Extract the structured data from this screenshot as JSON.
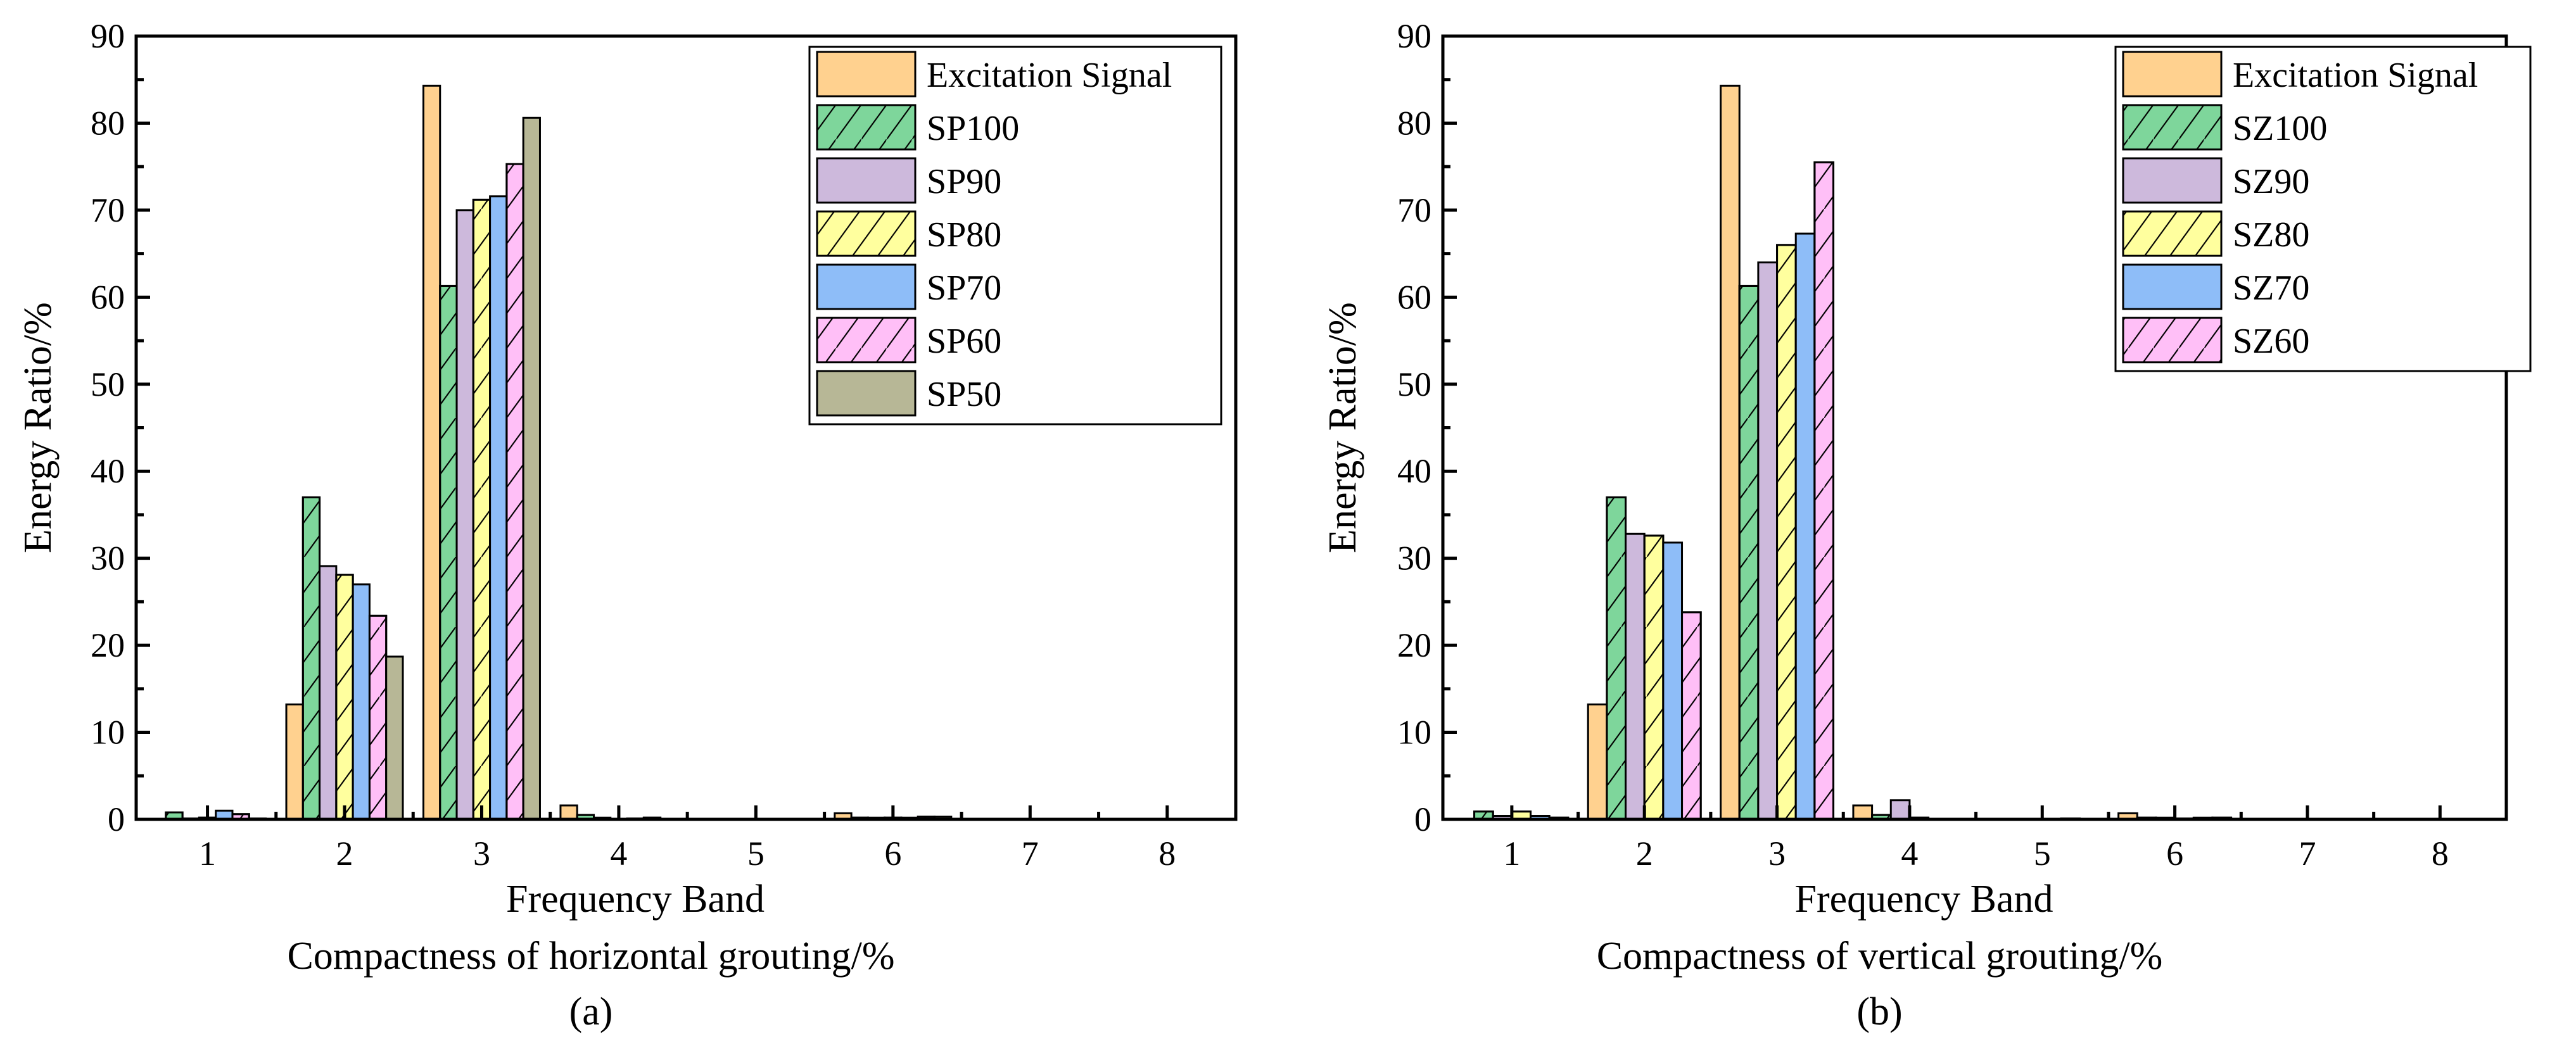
{
  "chart_data": [
    {
      "type": "bar",
      "panel_label": "(a)",
      "xlabel": "Frequency Band",
      "subtitle": "Compactness of horizontal grouting/%",
      "ylabel": "Energy Ratio/%",
      "ylim": [
        0,
        90
      ],
      "yticks": [
        "0",
        "10",
        "20",
        "30",
        "40",
        "50",
        "60",
        "70",
        "80",
        "90"
      ],
      "categories": [
        "1",
        "2",
        "3",
        "4",
        "5",
        "6",
        "7",
        "8"
      ],
      "legend_position": "top-right",
      "series": [
        {
          "name": "Excitation Signal",
          "color": "#FFD18F",
          "hatch": false,
          "values": [
            0,
            13.2,
            84.3,
            1.6,
            0,
            0.7,
            0,
            0
          ]
        },
        {
          "name": "SP100",
          "color": "#7ED69B",
          "hatch": true,
          "values": [
            0.8,
            37.0,
            61.3,
            0.5,
            0,
            0.2,
            0,
            0
          ]
        },
        {
          "name": "SP90",
          "color": "#CDB9DC",
          "hatch": false,
          "values": [
            0.1,
            29.1,
            70.0,
            0.2,
            0,
            0.2,
            0,
            0
          ]
        },
        {
          "name": "SP80",
          "color": "#FFFF9E",
          "hatch": true,
          "values": [
            0.2,
            28.1,
            71.2,
            0,
            0,
            0.2,
            0,
            0
          ]
        },
        {
          "name": "SP70",
          "color": "#8EBDF8",
          "hatch": false,
          "values": [
            1.0,
            27.0,
            71.6,
            0.1,
            0,
            0.2,
            0,
            0
          ]
        },
        {
          "name": "SP60",
          "color": "#FFBFF7",
          "hatch": true,
          "values": [
            0.6,
            23.4,
            75.3,
            0.2,
            0,
            0.3,
            0,
            0
          ]
        },
        {
          "name": "SP50",
          "color": "#B7B796",
          "hatch": false,
          "values": [
            0.1,
            18.7,
            80.6,
            0,
            0,
            0.3,
            0,
            0
          ]
        }
      ]
    },
    {
      "type": "bar",
      "panel_label": "(b)",
      "xlabel": "Frequency Band",
      "subtitle": "Compactness of vertical grouting/%",
      "ylabel": "Energy Ratio/%",
      "ylim": [
        0,
        90
      ],
      "yticks": [
        "0",
        "10",
        "20",
        "30",
        "40",
        "50",
        "60",
        "70",
        "80",
        "90"
      ],
      "categories": [
        "1",
        "2",
        "3",
        "4",
        "5",
        "6",
        "7",
        "8"
      ],
      "legend_position": "top-right",
      "series": [
        {
          "name": "Excitation Signal",
          "color": "#FFD18F",
          "hatch": false,
          "values": [
            0,
            13.2,
            84.3,
            1.6,
            0,
            0.7,
            0,
            0
          ]
        },
        {
          "name": "SZ100",
          "color": "#7ED69B",
          "hatch": true,
          "values": [
            0.9,
            37.0,
            61.3,
            0.5,
            0,
            0.2,
            0,
            0
          ]
        },
        {
          "name": "SZ90",
          "color": "#CDB9DC",
          "hatch": false,
          "values": [
            0.4,
            32.8,
            64.0,
            2.2,
            0,
            0.2,
            0,
            0
          ]
        },
        {
          "name": "SZ80",
          "color": "#FFFF9E",
          "hatch": true,
          "values": [
            0.9,
            32.6,
            66.0,
            0.2,
            0,
            0.1,
            0,
            0
          ]
        },
        {
          "name": "SZ70",
          "color": "#8EBDF8",
          "hatch": false,
          "values": [
            0.4,
            31.8,
            67.3,
            0,
            0.1,
            0.2,
            0,
            0
          ]
        },
        {
          "name": "SZ60",
          "color": "#FFBFF7",
          "hatch": true,
          "values": [
            0.2,
            23.8,
            75.5,
            0,
            0,
            0.2,
            0,
            0
          ]
        }
      ]
    }
  ]
}
